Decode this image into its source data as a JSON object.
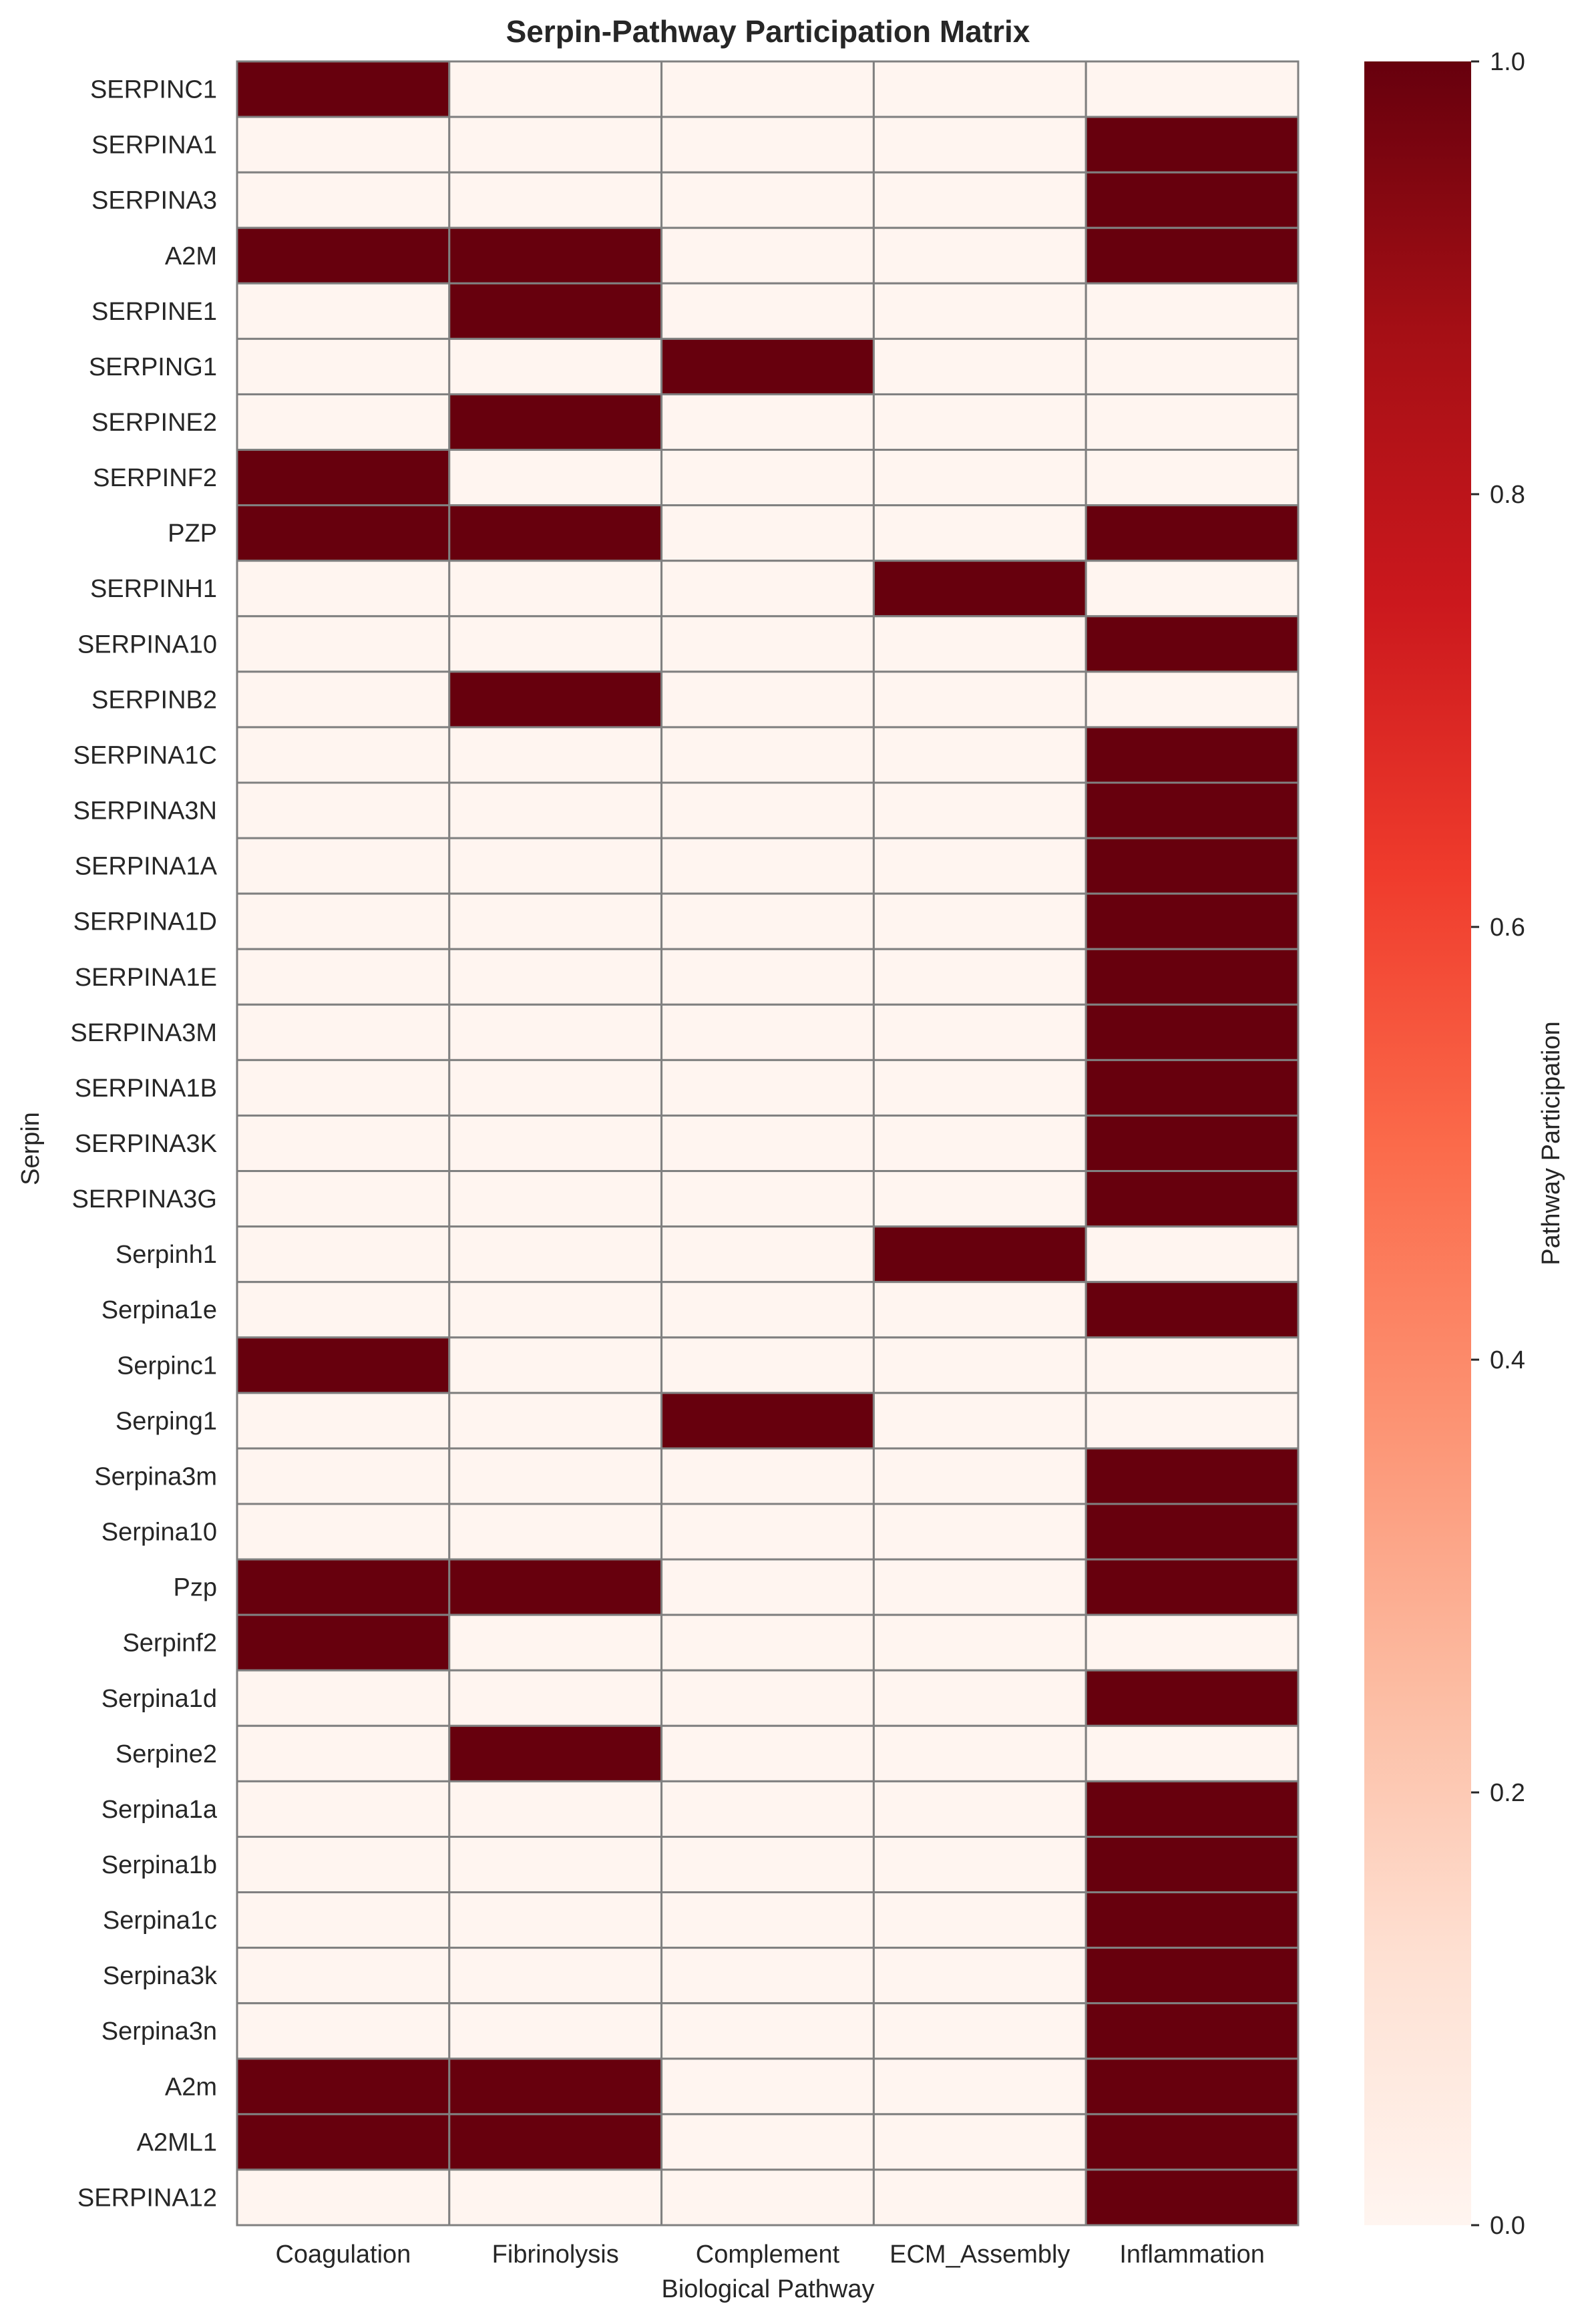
{
  "chart_data": {
    "type": "heatmap",
    "title": "Serpin-Pathway Participation Matrix",
    "xlabel": "Biological Pathway",
    "ylabel": "Serpin",
    "colorbar_label": "Pathway Participation",
    "colormap": "Reds",
    "colorbar_range": [
      0.0,
      1.0
    ],
    "colorbar_ticks": [
      "0.0",
      "0.2",
      "0.4",
      "0.6",
      "0.8",
      "1.0"
    ],
    "low_color": "#fff5f0",
    "high_color": "#67000d",
    "grid_color": "#808080",
    "x_categories": [
      "Coagulation",
      "Fibrinolysis",
      "Complement",
      "ECM_Assembly",
      "Inflammation"
    ],
    "y_categories": [
      "SERPINC1",
      "SERPINA1",
      "SERPINA3",
      "A2M",
      "SERPINE1",
      "SERPING1",
      "SERPINE2",
      "SERPINF2",
      "PZP",
      "SERPINH1",
      "SERPINA10",
      "SERPINB2",
      "SERPINA1C",
      "SERPINA3N",
      "SERPINA1A",
      "SERPINA1D",
      "SERPINA1E",
      "SERPINA3M",
      "SERPINA1B",
      "SERPINA3K",
      "SERPINA3G",
      "Serpinh1",
      "Serpina1e",
      "Serpinc1",
      "Serping1",
      "Serpina3m",
      "Serpina10",
      "Pzp",
      "Serpinf2",
      "Serpina1d",
      "Serpine2",
      "Serpina1a",
      "Serpina1b",
      "Serpina1c",
      "Serpina3k",
      "Serpina3n",
      "A2m",
      "A2ML1",
      "SERPINA12"
    ],
    "values": [
      [
        1,
        0,
        0,
        0,
        0
      ],
      [
        0,
        0,
        0,
        0,
        1
      ],
      [
        0,
        0,
        0,
        0,
        1
      ],
      [
        1,
        1,
        0,
        0,
        1
      ],
      [
        0,
        1,
        0,
        0,
        0
      ],
      [
        0,
        0,
        1,
        0,
        0
      ],
      [
        0,
        1,
        0,
        0,
        0
      ],
      [
        1,
        0,
        0,
        0,
        0
      ],
      [
        1,
        1,
        0,
        0,
        1
      ],
      [
        0,
        0,
        0,
        1,
        0
      ],
      [
        0,
        0,
        0,
        0,
        1
      ],
      [
        0,
        1,
        0,
        0,
        0
      ],
      [
        0,
        0,
        0,
        0,
        1
      ],
      [
        0,
        0,
        0,
        0,
        1
      ],
      [
        0,
        0,
        0,
        0,
        1
      ],
      [
        0,
        0,
        0,
        0,
        1
      ],
      [
        0,
        0,
        0,
        0,
        1
      ],
      [
        0,
        0,
        0,
        0,
        1
      ],
      [
        0,
        0,
        0,
        0,
        1
      ],
      [
        0,
        0,
        0,
        0,
        1
      ],
      [
        0,
        0,
        0,
        0,
        1
      ],
      [
        0,
        0,
        0,
        1,
        0
      ],
      [
        0,
        0,
        0,
        0,
        1
      ],
      [
        1,
        0,
        0,
        0,
        0
      ],
      [
        0,
        0,
        1,
        0,
        0
      ],
      [
        0,
        0,
        0,
        0,
        1
      ],
      [
        0,
        0,
        0,
        0,
        1
      ],
      [
        1,
        1,
        0,
        0,
        1
      ],
      [
        1,
        0,
        0,
        0,
        0
      ],
      [
        0,
        0,
        0,
        0,
        1
      ],
      [
        0,
        1,
        0,
        0,
        0
      ],
      [
        0,
        0,
        0,
        0,
        1
      ],
      [
        0,
        0,
        0,
        0,
        1
      ],
      [
        0,
        0,
        0,
        0,
        1
      ],
      [
        0,
        0,
        0,
        0,
        1
      ],
      [
        0,
        0,
        0,
        0,
        1
      ],
      [
        1,
        1,
        0,
        0,
        1
      ],
      [
        1,
        1,
        0,
        0,
        1
      ],
      [
        0,
        0,
        0,
        0,
        1
      ]
    ]
  }
}
